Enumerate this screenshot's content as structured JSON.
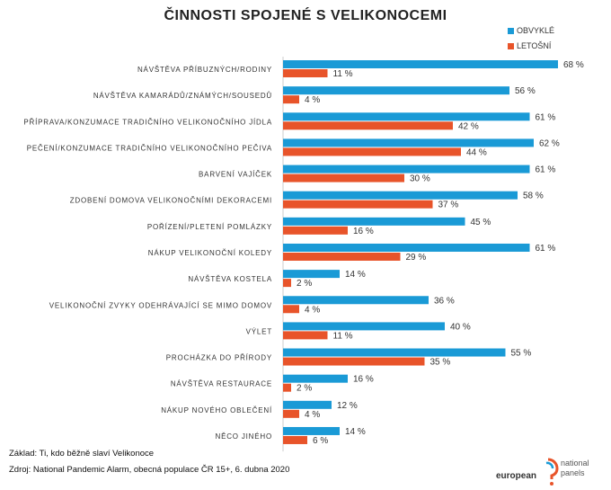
{
  "chart_data": {
    "type": "bar",
    "orientation": "horizontal",
    "title": "ČINNOSTI SPOJENÉ S VELIKONOCEMI",
    "legend_position": "top-right",
    "unit": "%",
    "grid": false,
    "xlim": [
      0,
      70
    ],
    "categories": [
      "NÁVŠTĚVA PŘÍBUZNÝCH/RODINY",
      "NÁVŠTĚVA KAMARÁDŮ/ZNÁMÝCH/SOUSEDŮ",
      "PŘÍPRAVA/KONZUMACE TRADIČNÍHO VELIKONOČNÍHO JÍDLA",
      "PEČENÍ/KONZUMACE TRADIČNÍHO VELIKONOČNÍHO PEČIVA",
      "BARVENÍ VAJÍČEK",
      "ZDOBENÍ DOMOVA VELIKONOČNÍMI DEKORACEMI",
      "POŘÍZENÍ/PLETENÍ POMLÁZKY",
      "NÁKUP VELIKONOČNÍ KOLEDY",
      "NÁVŠTĚVA KOSTELA",
      "VELIKONOČNÍ ZVYKY ODEHRÁVAJÍCÍ SE MIMO DOMOV",
      "VÝLET",
      "PROCHÁZKA DO PŘÍRODY",
      "NÁVŠTĚVA RESTAURACE",
      "NÁKUP NOVÉHO OBLEČENÍ",
      "NĚCO JINÉHO"
    ],
    "series": [
      {
        "name": "OBVYKLÉ",
        "color": "#1a9ad6",
        "values": [
          68,
          56,
          61,
          62,
          61,
          58,
          45,
          61,
          14,
          36,
          40,
          55,
          16,
          12,
          14
        ]
      },
      {
        "name": "LETOŠNÍ",
        "color": "#e8542a",
        "values": [
          11,
          4,
          42,
          44,
          30,
          37,
          16,
          29,
          2,
          4,
          11,
          35,
          2,
          4,
          6
        ]
      }
    ]
  },
  "footer": {
    "base": "Základ: Ti, kdo běžně slaví Velikonoce",
    "source": "Zdroj: National Pandemic Alarm, obecná populace ČR 15+, 6. dubna 2020"
  },
  "logo": {
    "text_left": "european",
    "text_right_1": "national",
    "text_right_2": "panels"
  }
}
